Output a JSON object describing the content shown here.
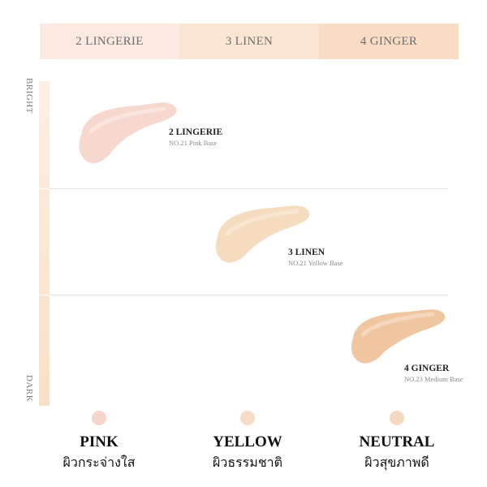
{
  "tabs": [
    {
      "label": "2 LINGERIE"
    },
    {
      "label": "3 LINEN"
    },
    {
      "label": "4 GINGER"
    }
  ],
  "axis": {
    "top": "BRIGHT",
    "bottom": "DARK"
  },
  "shades": [
    {
      "name": "2 LINGERIE",
      "desc": "NO.21 Pink Base",
      "color": "#f7d8cf"
    },
    {
      "name": "3 LINEN",
      "desc": "NO.21 Yellow Base",
      "color": "#f6dcbf"
    },
    {
      "name": "4 GINGER",
      "desc": "NO.23 Medium Base",
      "color": "#efc6a0"
    }
  ],
  "tones": [
    {
      "title": "PINK",
      "thai": "ผิวกระจ่างใส",
      "color": "#f6d5cc"
    },
    {
      "title": "YELLOW",
      "thai": "ผิวธรรมชาติ",
      "color": "#f6dcc4"
    },
    {
      "title": "NEUTRAL",
      "thai": "ผิวสุขภาพดี",
      "color": "#f4d9c2"
    }
  ]
}
